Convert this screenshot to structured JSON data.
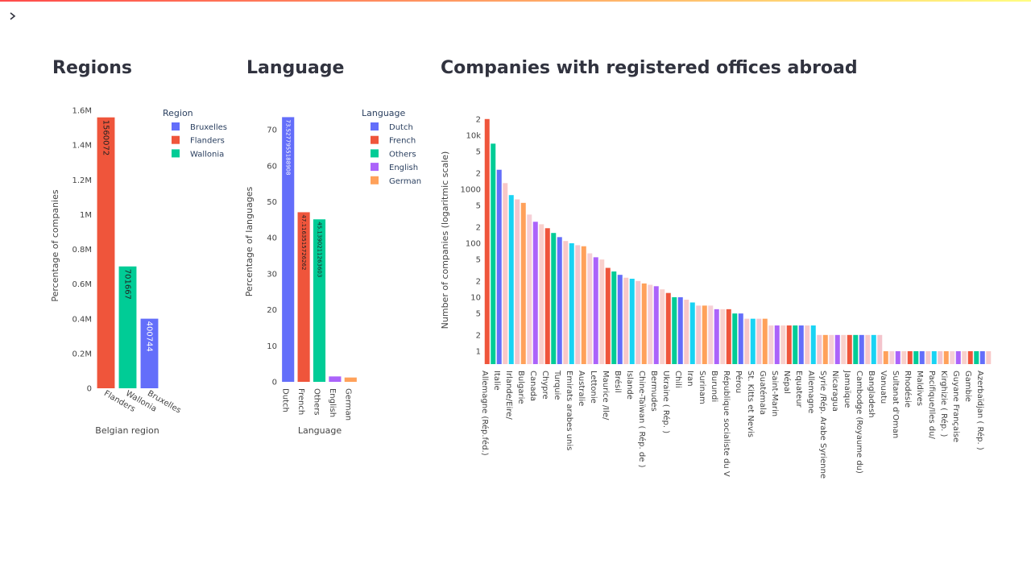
{
  "chart_data": [
    {
      "type": "bar",
      "title": "Regions",
      "x_label": "Belgian region",
      "y_label": "Percentage of companies",
      "legend_title": "Region",
      "categories": [
        "Flanders",
        "Wallonia",
        "Bruxelles"
      ],
      "series": [
        {
          "name": "Bruxelles",
          "color": "#636efa",
          "values": [
            null,
            null,
            400744
          ]
        },
        {
          "name": "Flanders",
          "color": "#ef553b",
          "values": [
            1560072,
            null,
            null
          ]
        },
        {
          "name": "Wallonia",
          "color": "#00cc96",
          "values": [
            null,
            701667,
            null
          ]
        }
      ],
      "ylim": [
        0,
        1642181
      ],
      "yticks": [
        0,
        {
          "value": 200000,
          "label": "0.2M"
        },
        {
          "value": 400000,
          "label": "0.4M"
        },
        {
          "value": 600000,
          "label": "0.6M"
        },
        {
          "value": 800000,
          "label": "0.8M"
        },
        {
          "value": 1000000,
          "label": "1M"
        },
        {
          "value": 1200000,
          "label": "1.2M"
        },
        {
          "value": 1400000,
          "label": "1.4M"
        },
        {
          "value": 1600000,
          "label": "1.6M"
        }
      ],
      "xlabel_rotation": 30,
      "value_labels_shown": true
    },
    {
      "type": "bar",
      "title": "Language",
      "x_label": "Language",
      "y_label": "Percentage of languages",
      "legend_title": "Language",
      "categories": [
        "Dutch",
        "French",
        "Others",
        "English",
        "German"
      ],
      "series": [
        {
          "name": "Dutch",
          "color": "#636efa",
          "values": [
            73.5277955188908,
            null,
            null,
            null,
            null
          ]
        },
        {
          "name": "French",
          "color": "#ef553b",
          "values": [
            null,
            47.1163515726262,
            null,
            null,
            null
          ]
        },
        {
          "name": "Others",
          "color": "#00cc96",
          "values": [
            null,
            null,
            45.1390211263603,
            null,
            null
          ]
        },
        {
          "name": "English",
          "color": "#ab63fa",
          "values": [
            null,
            null,
            null,
            1.5,
            null
          ]
        },
        {
          "name": "German",
          "color": "#ffa15a",
          "values": [
            null,
            null,
            null,
            null,
            1.2
          ]
        }
      ],
      "ylim": [
        0,
        77.2
      ],
      "yticks": [
        0,
        10,
        20,
        30,
        40,
        50,
        60,
        70
      ],
      "xlabel_rotation": 90,
      "value_labels_shown": true
    },
    {
      "type": "bar",
      "title": "Companies with registered offices abroad",
      "y_label": "Number of companies (logaritmic scale)",
      "log_scale": true,
      "categories": [
        "Allemagne (Rép.féd.)",
        null,
        "Italie",
        null,
        "Irlande/Eire/",
        null,
        "Bulgarie",
        null,
        "Canada",
        null,
        "Chypre",
        null,
        "Turquie",
        null,
        "Emirats arabes unis",
        null,
        "Australie",
        null,
        "Lettonie",
        null,
        "Maurice /Ile/",
        null,
        "Brésil",
        null,
        "Islande",
        null,
        "Chine-Taïwan ( Rép. de )",
        null,
        "Bermudes",
        null,
        "Ukraine ( Rép. )",
        null,
        "Chili",
        null,
        "Iran",
        null,
        "Surinam",
        null,
        "Burundi",
        null,
        "République socialiste du V",
        null,
        "Pérou",
        null,
        "St. Kitts et Nevis",
        null,
        "Guatémala",
        null,
        "Saint-Marin",
        null,
        "Népal",
        null,
        "Equateur",
        null,
        "Allemagne",
        null,
        "Syrie /Rép. Arabe Syrienne",
        null,
        "Nicaragua",
        null,
        "Jamaïque",
        null,
        "Cambodge (Royaume du)",
        null,
        "Bangladesh",
        null,
        "Vanuatu",
        null,
        "Sultanat d'Oman",
        null,
        "Rhodésie",
        null,
        "Maldives",
        null,
        "Pacifique/Iles du/",
        null,
        "Kirghizie ( Rép. )",
        null,
        "Guyane Française",
        null,
        "Gambie",
        null,
        "Azerbaïdjan ( Rép. )",
        null
      ],
      "values": [
        20000,
        7000,
        2300,
        1300,
        780,
        650,
        560,
        340,
        250,
        225,
        190,
        155,
        130,
        110,
        100,
        92,
        88,
        65,
        55,
        50,
        35,
        30,
        26,
        23,
        22,
        20,
        18,
        17,
        16,
        14,
        12,
        10,
        10,
        9,
        8,
        7,
        7,
        7,
        6,
        6,
        6,
        5,
        5,
        4,
        4,
        4,
        4,
        3,
        3,
        3,
        3,
        3,
        3,
        3,
        3,
        2,
        2,
        2,
        2,
        2,
        2,
        2,
        2,
        2,
        2,
        2,
        1,
        1,
        1,
        1,
        1,
        1,
        1,
        1,
        1,
        1,
        1,
        1,
        1,
        1,
        1,
        1,
        1,
        1
      ],
      "palette": [
        "#ef553b",
        "#00cc96",
        "#636efa",
        "#f8c8c8",
        "#19d3f3",
        "#f4c4cc",
        "#ffa15a",
        "#f6cfd6",
        "#ab63fa",
        "#f9d0cc"
      ],
      "ylim": [
        0.577,
        22000
      ],
      "yticks": [
        1,
        2,
        5,
        10,
        {
          "value": 20,
          "label": "2"
        },
        {
          "value": 50,
          "label": "5"
        },
        100,
        {
          "value": 200,
          "label": "2"
        },
        {
          "value": 500,
          "label": "5"
        },
        1000,
        {
          "value": 2000,
          "label": "2"
        },
        {
          "value": 5000,
          "label": "5"
        },
        {
          "value": 10000,
          "label": "10k"
        },
        {
          "value": 20000,
          "label": "2"
        }
      ],
      "xlabel_rotation": 90
    }
  ]
}
